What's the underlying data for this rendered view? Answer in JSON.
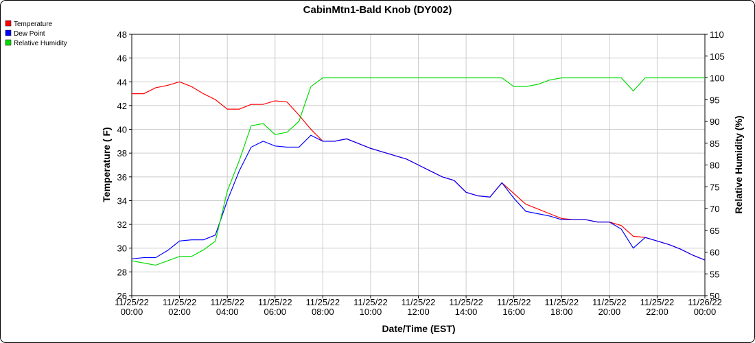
{
  "chart_data": {
    "type": "line",
    "title": "CabinMtn1-Bald Knob (DY002)",
    "x_label": "Date/Time (EST)",
    "y_label": "Temperature ( F)",
    "y2_label": "Relative Humidity (%)",
    "x": [
      0,
      0.5,
      1,
      1.5,
      2,
      2.5,
      3,
      3.5,
      4,
      4.5,
      5,
      5.5,
      6,
      6.5,
      7,
      7.5,
      8,
      8.5,
      9,
      9.5,
      10,
      10.5,
      11,
      11.5,
      12,
      12.5,
      13,
      13.5,
      14,
      14.5,
      15,
      15.5,
      16,
      16.5,
      17,
      17.5,
      18,
      18.5,
      19,
      19.5,
      20,
      20.5,
      21,
      21.5,
      22,
      22.5,
      23,
      23.5,
      24
    ],
    "xlim": [
      0,
      24
    ],
    "xticks": [
      {
        "value": 0,
        "label": "11/25/22 00:00"
      },
      {
        "value": 2,
        "label": "11/25/22 02:00"
      },
      {
        "value": 4,
        "label": "11/25/22 04:00"
      },
      {
        "value": 6,
        "label": "11/25/22 06:00"
      },
      {
        "value": 8,
        "label": "11/25/22 08:00"
      },
      {
        "value": 10,
        "label": "11/25/22 10:00"
      },
      {
        "value": 12,
        "label": "11/25/22 12:00"
      },
      {
        "value": 14,
        "label": "11/25/22 14:00"
      },
      {
        "value": 16,
        "label": "11/25/22 16:00"
      },
      {
        "value": 18,
        "label": "11/25/22 18:00"
      },
      {
        "value": 20,
        "label": "11/25/22 20:00"
      },
      {
        "value": 22,
        "label": "11/25/22 22:00"
      },
      {
        "value": 24,
        "label": "11/26/22 00:00"
      }
    ],
    "ylim": [
      26,
      48
    ],
    "yticks": [
      26,
      28,
      30,
      32,
      34,
      36,
      38,
      40,
      42,
      44,
      46,
      48
    ],
    "y2lim": [
      50,
      110
    ],
    "y2ticks": [
      50,
      55,
      60,
      65,
      70,
      75,
      80,
      85,
      90,
      95,
      100,
      105,
      110
    ],
    "grid": true,
    "series": [
      {
        "name": "Temperature",
        "color": "#ff0000",
        "values": [
          43.0,
          43.0,
          43.5,
          43.7,
          44.0,
          43.6,
          43.0,
          42.5,
          41.7,
          41.7,
          42.1,
          42.1,
          42.4,
          42.3,
          41.2,
          40.0,
          39.0,
          39.0,
          39.2,
          38.8,
          38.4,
          38.1,
          37.8,
          37.5,
          37.0,
          36.5,
          36.0,
          35.7,
          34.7,
          34.4,
          34.3,
          35.5,
          34.6,
          33.7,
          33.3,
          32.9,
          32.5,
          32.4,
          32.4,
          32.2,
          32.2,
          31.9,
          31.0,
          30.9,
          30.6,
          30.3,
          29.9,
          29.4,
          29.0
        ]
      },
      {
        "name": "Dew Point",
        "color": "#0000ff",
        "values": [
          29.1,
          29.2,
          29.2,
          29.8,
          30.6,
          30.7,
          30.7,
          31.1,
          34.0,
          36.5,
          38.5,
          39.0,
          38.6,
          38.5,
          38.5,
          39.5,
          39.0,
          39.0,
          39.2,
          38.8,
          38.4,
          38.1,
          37.8,
          37.5,
          37.0,
          36.5,
          36.0,
          35.7,
          34.7,
          34.4,
          34.3,
          35.5,
          34.2,
          33.1,
          32.9,
          32.7,
          32.4,
          32.4,
          32.4,
          32.2,
          32.2,
          31.6,
          30.0,
          30.9,
          30.6,
          30.3,
          29.9,
          29.4,
          29.0
        ]
      },
      {
        "name": "Relative Humidity",
        "color": "#00dd00",
        "axis": "y2",
        "values": [
          58,
          57.5,
          57,
          58,
          59,
          59,
          60.5,
          62.5,
          74,
          81,
          89,
          89.5,
          87,
          87.5,
          90,
          98,
          100,
          100,
          100,
          100,
          100,
          100,
          100,
          100,
          100,
          100,
          100,
          100,
          100,
          100,
          100,
          100,
          98,
          98,
          98.5,
          99.5,
          100,
          100,
          100,
          100,
          100,
          100,
          97,
          100,
          100,
          100,
          100,
          100,
          100
        ]
      }
    ]
  }
}
